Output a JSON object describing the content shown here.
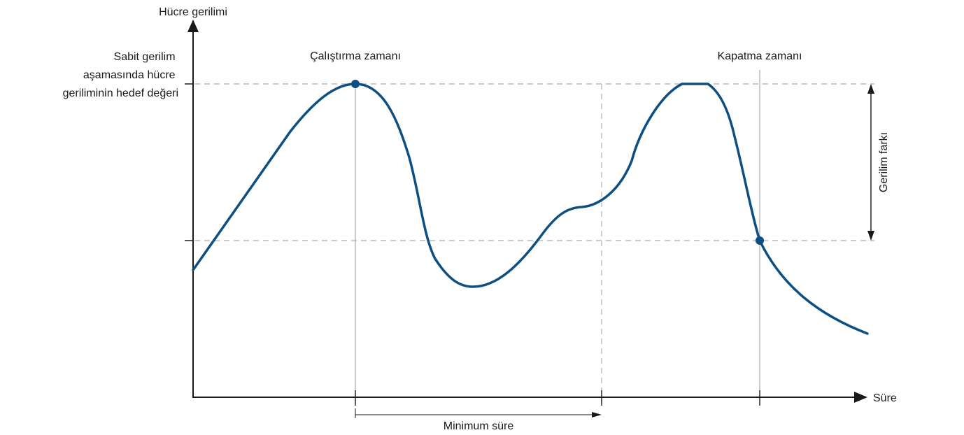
{
  "y_axis_label": "Hücre gerilimi",
  "x_axis_label": "Süre",
  "target_label_lines": [
    "Sabit gerilim",
    "aşamasında hücre",
    "geriliminin hedef değeri"
  ],
  "start_label": "Çalıştırma zamanı",
  "stop_label": "Kapatma zamanı",
  "voltage_diff_label": "Gerilim farkı",
  "min_duration_label": "Minimum süre",
  "colors": {
    "curve": "#0d4f82",
    "axis": "#1a1a1a",
    "guide": "#bbbbbb"
  }
}
